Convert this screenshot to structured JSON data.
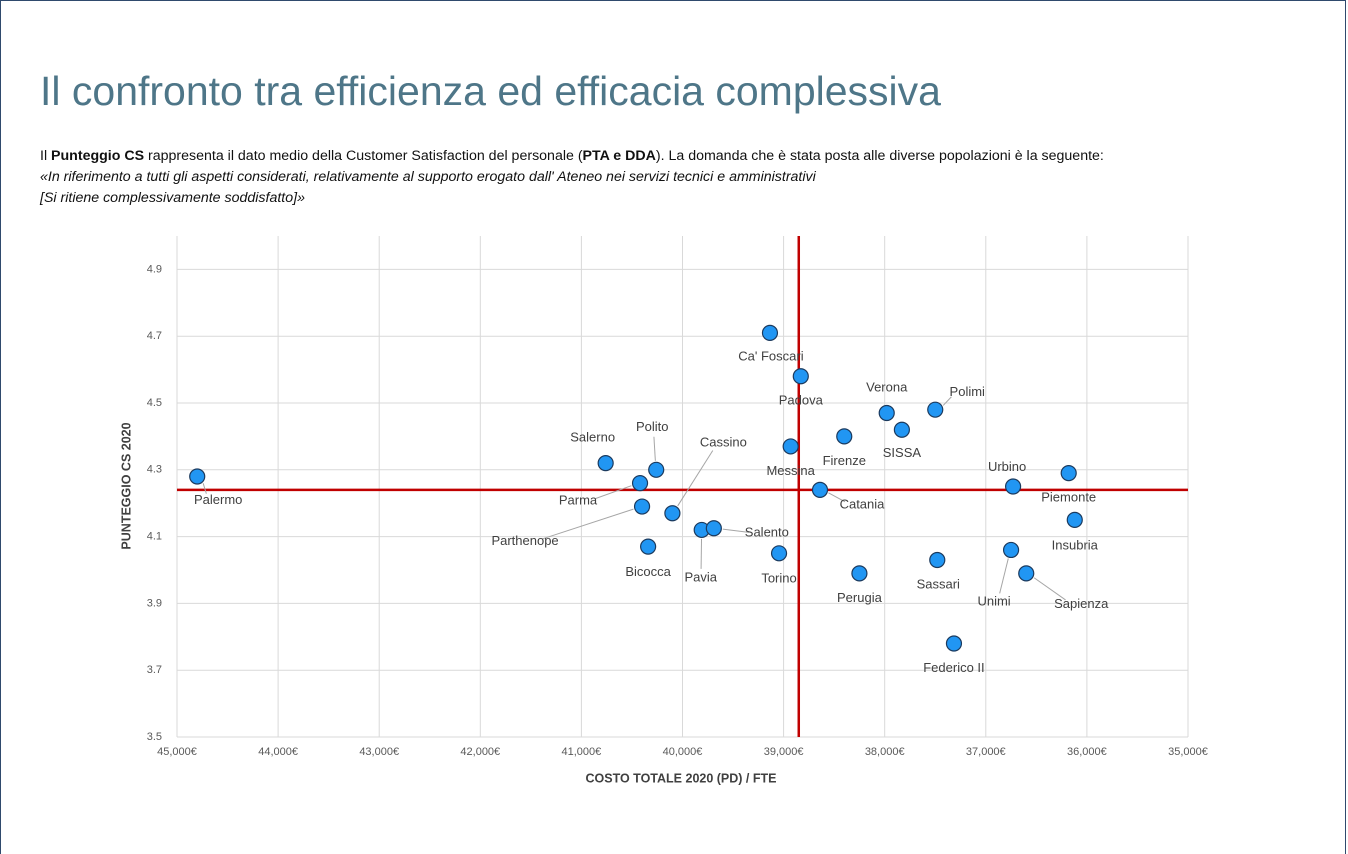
{
  "title": "Il confronto tra efficienza ed efficacia complessiva",
  "intro": {
    "parts": [
      "Il ",
      "Punteggio CS",
      " rappresenta il dato medio della Customer Satisfaction del personale (",
      "PTA e DDA",
      "). La domanda che è stata posta alle diverse popolazioni è la seguente:"
    ],
    "quote_lines": [
      " «In riferimento a tutti gli aspetti considerati, relativamente al supporto erogato dall' Ateneo nei servizi tecnici e amministrativi",
      "[Si ritiene complessivamente soddisfatto]»"
    ]
  },
  "chart_data": {
    "type": "scatter",
    "x_label": "COSTO TOTALE 2020 (PD) / FTE",
    "y_label": "PUNTEGGIO CS 2020",
    "xlim": [
      45000,
      35000
    ],
    "ylim": [
      3.5,
      5.0
    ],
    "xticks": [
      {
        "value": 45000,
        "label": "45,000€"
      },
      {
        "value": 44000,
        "label": "44,000€"
      },
      {
        "value": 43000,
        "label": "43,000€"
      },
      {
        "value": 42000,
        "label": "42,000€"
      },
      {
        "value": 41000,
        "label": "41,000€"
      },
      {
        "value": 40000,
        "label": "40,000€"
      },
      {
        "value": 39000,
        "label": "39,000€"
      },
      {
        "value": 38000,
        "label": "38,000€"
      },
      {
        "value": 37000,
        "label": "37,000€"
      },
      {
        "value": 36000,
        "label": "36,000€"
      },
      {
        "value": 35000,
        "label": "35,000€"
      }
    ],
    "yticks": [
      3.5,
      3.7,
      3.9,
      4.1,
      4.3,
      4.5,
      4.7,
      4.9
    ],
    "grid": true,
    "color": "#2196f3",
    "reference_x": 38850,
    "reference_y": 4.24,
    "reference_color": "#c00000",
    "labels": [
      "Palermo",
      "Salerno",
      "Polito",
      "Parma",
      "Parthenope",
      "Cassino",
      "Bicocca",
      "Pavia",
      "Salento",
      "Torino",
      "Ca' Foscari",
      "Padova",
      "Messina",
      "Firenze",
      "Catania",
      "Verona",
      "SISSA",
      "Polimi",
      "Perugia",
      "Sassari",
      "Federico II",
      "Urbino",
      "Unimi",
      "Sapienza",
      "Piemonte",
      "Insubria"
    ],
    "x": [
      44800,
      40760,
      40260,
      40420,
      40400,
      40100,
      40340,
      39810,
      39690,
      39045,
      39135,
      38830,
      38930,
      38400,
      38640,
      37980,
      37830,
      37500,
      38250,
      37480,
      37315,
      36730,
      36750,
      36600,
      36180,
      36120
    ],
    "y": [
      4.28,
      4.32,
      4.3,
      4.26,
      4.19,
      4.17,
      4.07,
      4.12,
      4.125,
      4.05,
      4.71,
      4.58,
      4.37,
      4.4,
      4.24,
      4.47,
      4.42,
      4.48,
      3.99,
      4.03,
      3.78,
      4.25,
      4.06,
      3.99,
      4.29,
      4.15
    ]
  }
}
